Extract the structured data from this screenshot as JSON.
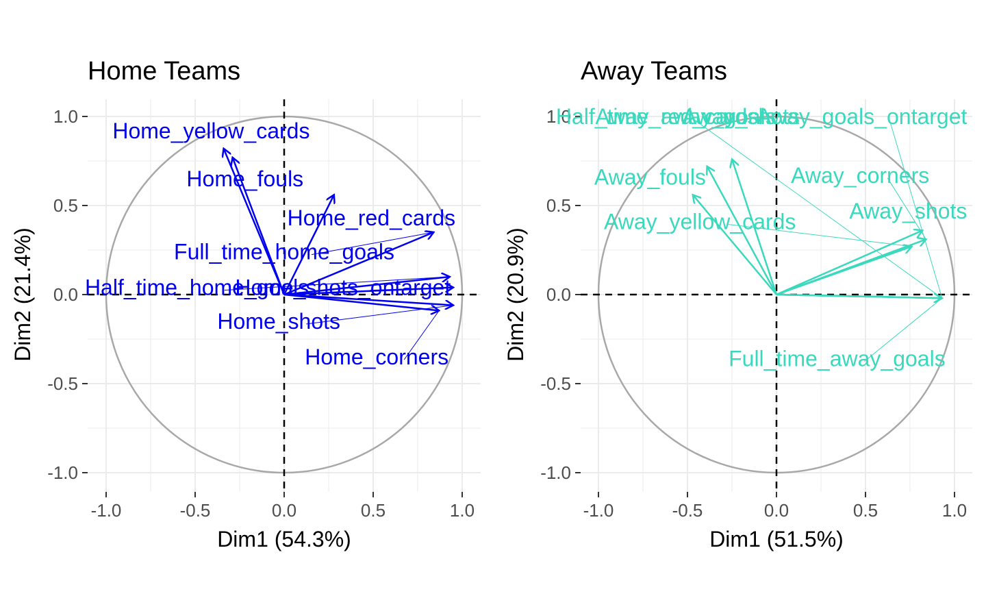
{
  "chart_data": [
    {
      "type": "scatter",
      "title": "Home Teams",
      "xlabel": "Dim1 (54.3%)",
      "ylabel": "Dim2 (21.4%)",
      "xlim": [
        -1.1,
        1.1
      ],
      "ylim": [
        -1.1,
        1.1
      ],
      "xticks": [
        "-1.0",
        "-0.5",
        "0.0",
        "0.5",
        "1.0"
      ],
      "yticks": [
        "-1.0",
        "-0.5",
        "0.0",
        "0.5",
        "1.0"
      ],
      "grid": true,
      "color": "#0000ee",
      "variables": [
        {
          "name": "Home_yellow_cards",
          "x": -0.34,
          "y": 0.82,
          "label_x": -0.41,
          "label_y": 0.92
        },
        {
          "name": "Home_fouls",
          "x": -0.29,
          "y": 0.77,
          "label_x": -0.22,
          "label_y": 0.65
        },
        {
          "name": "Home_red_cards",
          "x": 0.28,
          "y": 0.56,
          "label_x": 0.49,
          "label_y": 0.43
        },
        {
          "name": "Full_time_home_goals",
          "x": 0.84,
          "y": 0.35,
          "label_x": 0.0,
          "label_y": 0.24
        },
        {
          "name": "Half_time_home_goals",
          "x": 0.93,
          "y": 0.1,
          "label_x": -0.49,
          "label_y": 0.04
        },
        {
          "name": "Home_shots_ontarget",
          "x": 0.95,
          "y": 0.04,
          "label_x": 0.33,
          "label_y": 0.04
        },
        {
          "name": "Home_shots",
          "x": 0.95,
          "y": -0.06,
          "label_x": -0.03,
          "label_y": -0.15
        },
        {
          "name": "Home_corners",
          "x": 0.87,
          "y": -0.09,
          "label_x": 0.52,
          "label_y": -0.35
        }
      ]
    },
    {
      "type": "scatter",
      "title": "Away Teams",
      "xlabel": "Dim1 (51.5%)",
      "ylabel": "Dim2 (20.9%)",
      "xlim": [
        -1.1,
        1.1
      ],
      "ylim": [
        -1.1,
        1.1
      ],
      "xticks": [
        "-1.0",
        "-0.5",
        "0.0",
        "0.5",
        "1.0"
      ],
      "yticks": [
        "-1.0",
        "-0.5",
        "0.0",
        "0.5",
        "1.0"
      ],
      "grid": true,
      "color": "#3ad9bd",
      "variables": [
        {
          "name": "Half_time_away_goals",
          "x": 0.93,
          "y": -0.02,
          "label_x": -0.62,
          "label_y": 1.0
        },
        {
          "name": "Away_red_cards",
          "x": -0.39,
          "y": 0.72,
          "label_x": -0.56,
          "label_y": 1.0
        },
        {
          "name": "Away_shots",
          "x": -0.25,
          "y": 0.76,
          "label_x": -0.2,
          "label_y": 1.0
        },
        {
          "name": "Away_goals_ontarget",
          "x": 0.93,
          "y": -0.02,
          "label_x": 0.48,
          "label_y": 1.0
        },
        {
          "name": "Away_fouls",
          "x": -0.47,
          "y": 0.56,
          "label_x": -0.71,
          "label_y": 0.66
        },
        {
          "name": "Away_corners",
          "x": 0.84,
          "y": 0.31,
          "label_x": 0.47,
          "label_y": 0.67
        },
        {
          "name": "Away_shots",
          "x": 0.82,
          "y": 0.36,
          "label_x": 0.74,
          "label_y": 0.47
        },
        {
          "name": "Away_yellow_cards",
          "x": 0.76,
          "y": 0.27,
          "label_x": -0.43,
          "label_y": 0.41
        },
        {
          "name": "Full_time_away_goals",
          "x": 0.93,
          "y": -0.02,
          "label_x": 0.34,
          "label_y": -0.36
        }
      ]
    }
  ]
}
